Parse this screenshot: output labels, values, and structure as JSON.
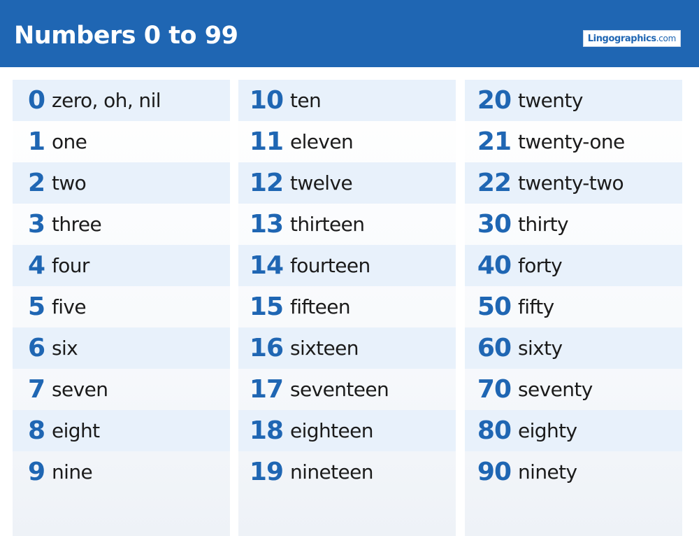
{
  "header": {
    "title": "Numbers 0 to 99",
    "logo": {
      "name": "Lingographics",
      "domain": ".com"
    }
  },
  "colors": {
    "header_bg": "#1f66b3",
    "number_text": "#1f66b3",
    "row_highlight": "#e8f1fb",
    "word_text": "#1b1b1b"
  },
  "columns": [
    {
      "rows": [
        {
          "number": "0",
          "word": "zero, oh, nil"
        },
        {
          "number": "1",
          "word": "one"
        },
        {
          "number": "2",
          "word": "two"
        },
        {
          "number": "3",
          "word": "three"
        },
        {
          "number": "4",
          "word": "four"
        },
        {
          "number": "5",
          "word": "five"
        },
        {
          "number": "6",
          "word": "six"
        },
        {
          "number": "7",
          "word": "seven"
        },
        {
          "number": "8",
          "word": "eight"
        },
        {
          "number": "9",
          "word": "nine"
        }
      ]
    },
    {
      "rows": [
        {
          "number": "10",
          "word": "ten"
        },
        {
          "number": "11",
          "word": "eleven"
        },
        {
          "number": "12",
          "word": "twelve"
        },
        {
          "number": "13",
          "word": "thirteen"
        },
        {
          "number": "14",
          "word": "fourteen"
        },
        {
          "number": "15",
          "word": "fifteen"
        },
        {
          "number": "16",
          "word": "sixteen"
        },
        {
          "number": "17",
          "word": "seventeen"
        },
        {
          "number": "18",
          "word": "eighteen"
        },
        {
          "number": "19",
          "word": "nineteen"
        }
      ]
    },
    {
      "rows": [
        {
          "number": "20",
          "word": "twenty"
        },
        {
          "number": "21",
          "word": "twenty-one"
        },
        {
          "number": "22",
          "word": "twenty-two"
        },
        {
          "number": "30",
          "word": "thirty"
        },
        {
          "number": "40",
          "word": "forty"
        },
        {
          "number": "50",
          "word": "fifty"
        },
        {
          "number": "60",
          "word": "sixty"
        },
        {
          "number": "70",
          "word": "seventy"
        },
        {
          "number": "80",
          "word": "eighty"
        },
        {
          "number": "90",
          "word": "ninety"
        }
      ]
    }
  ]
}
